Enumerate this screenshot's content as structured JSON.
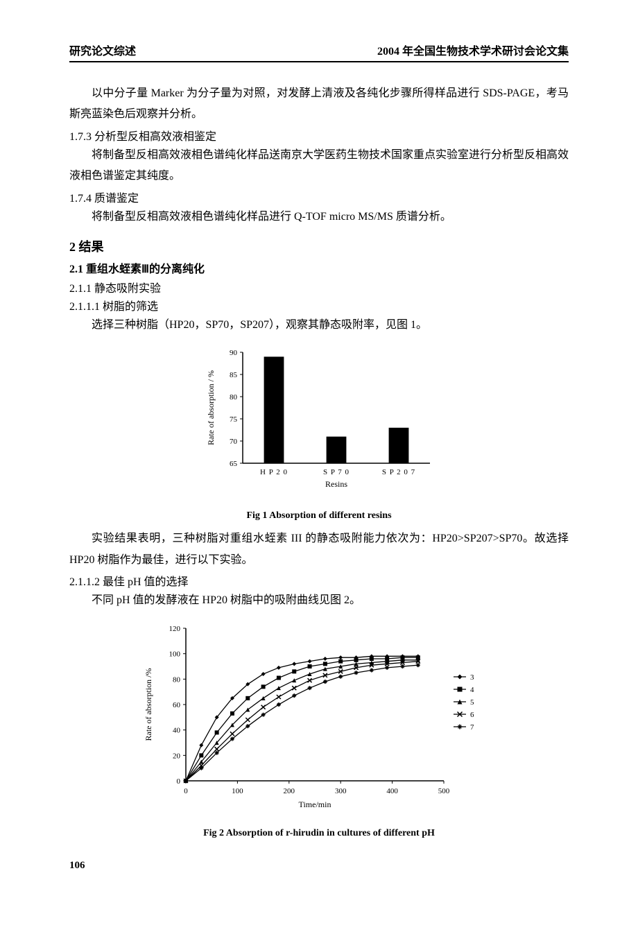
{
  "header": {
    "left": "研究论文综述",
    "right": "2004 年全国生物技术学术研讨会论文集"
  },
  "body": {
    "p1": "以中分子量 Marker 为分子量为对照，对发酵上清液及各纯化步骤所得样品进行 SDS-PAGE，考马斯亮蓝染色后观察并分析。",
    "s173_title": "1.7.3  分析型反相高效液相鉴定",
    "s173_text": "将制备型反相高效液相色谱纯化样品送南京大学医药生物技术国家重点实验室进行分析型反相高效液相色谱鉴定其纯度。",
    "s174_title": "1.7.4  质谱鉴定",
    "s174_text": "将制备型反相高效液相色谱纯化样品进行 Q-TOF micro MS/MS  质谱分析。",
    "h2_title": "2  结果",
    "s21_title": "2.1  重组水蛭素Ⅲ的分离纯化",
    "s211_title": "2.1.1  静态吸附实验",
    "s2111_title": "2.1.1.1 树脂的筛选",
    "s2111_text": "选择三种树脂（HP20，SP70，SP207），观察其静态吸附率，见图 1。",
    "fig1_caption": "Fig 1   Absorption of different resins",
    "result1_text": "实验结果表明，三种树脂对重组水蛭素 III 的静态吸附能力依次为：HP20>SP207>SP70。故选择 HP20 树脂作为最佳，进行以下实验。",
    "s2112_title": "2.1.1.2 最佳 pH 值的选择",
    "s2112_text": "不同 pH 值的发酵液在 HP20 树脂中的吸附曲线见图 2。",
    "fig2_caption": "Fig 2   Absorption of r-hirudin in cultures of different pH"
  },
  "fig1": {
    "type": "bar",
    "ylabel": "Rate of absorption / %",
    "xlabel": "Resins",
    "categories": [
      "H P 2 0",
      "S P 7 0",
      "S P 2 0 7"
    ],
    "values": [
      89,
      71,
      73
    ],
    "ylim": [
      65,
      90
    ],
    "ytick_step": 5,
    "yticks": [
      65,
      70,
      75,
      80,
      85,
      90
    ],
    "bar_color": "#000000",
    "background_color": "#ffffff",
    "axis_color": "#000000",
    "font_size_axis": 12,
    "font_size_tick": 11,
    "bar_width": 0.32
  },
  "fig2": {
    "type": "line",
    "ylabel": "Rate of absorption /%",
    "xlabel": "Time/min",
    "xlim": [
      0,
      500
    ],
    "xtick_step": 100,
    "xticks": [
      0,
      100,
      200,
      300,
      400,
      500
    ],
    "ylim": [
      0,
      120
    ],
    "ytick_step": 20,
    "yticks": [
      0,
      20,
      40,
      60,
      80,
      100,
      120
    ],
    "background_color": "#ffffff",
    "axis_color": "#000000",
    "line_color": "#000000",
    "font_size_axis": 12,
    "font_size_tick": 11,
    "legend_labels": [
      "3",
      "4",
      "5",
      "6",
      "7"
    ],
    "legend_markers": [
      "diamond",
      "square",
      "triangle",
      "x",
      "star"
    ],
    "series": {
      "3": {
        "x": [
          0,
          30,
          60,
          90,
          120,
          150,
          180,
          210,
          240,
          270,
          300,
          330,
          360,
          390,
          420,
          450
        ],
        "y": [
          0,
          28,
          50,
          65,
          76,
          84,
          89,
          92,
          94,
          96,
          97,
          97,
          98,
          98,
          98,
          98
        ]
      },
      "4": {
        "x": [
          0,
          30,
          60,
          90,
          120,
          150,
          180,
          210,
          240,
          270,
          300,
          330,
          360,
          390,
          420,
          450
        ],
        "y": [
          0,
          20,
          38,
          53,
          65,
          74,
          81,
          86,
          90,
          92,
          94,
          95,
          96,
          96,
          97,
          97
        ]
      },
      "5": {
        "x": [
          0,
          30,
          60,
          90,
          120,
          150,
          180,
          210,
          240,
          270,
          300,
          330,
          360,
          390,
          420,
          450
        ],
        "y": [
          0,
          15,
          30,
          44,
          56,
          65,
          73,
          79,
          84,
          88,
          90,
          92,
          93,
          94,
          95,
          95
        ]
      },
      "6": {
        "x": [
          0,
          30,
          60,
          90,
          120,
          150,
          180,
          210,
          240,
          270,
          300,
          330,
          360,
          390,
          420,
          450
        ],
        "y": [
          0,
          12,
          25,
          37,
          48,
          58,
          66,
          73,
          79,
          83,
          86,
          89,
          91,
          92,
          93,
          94
        ]
      },
      "7": {
        "x": [
          0,
          30,
          60,
          90,
          120,
          150,
          180,
          210,
          240,
          270,
          300,
          330,
          360,
          390,
          420,
          450
        ],
        "y": [
          0,
          10,
          22,
          33,
          43,
          52,
          60,
          67,
          73,
          78,
          82,
          85,
          87,
          89,
          90,
          91
        ]
      }
    }
  },
  "page_num": "106"
}
